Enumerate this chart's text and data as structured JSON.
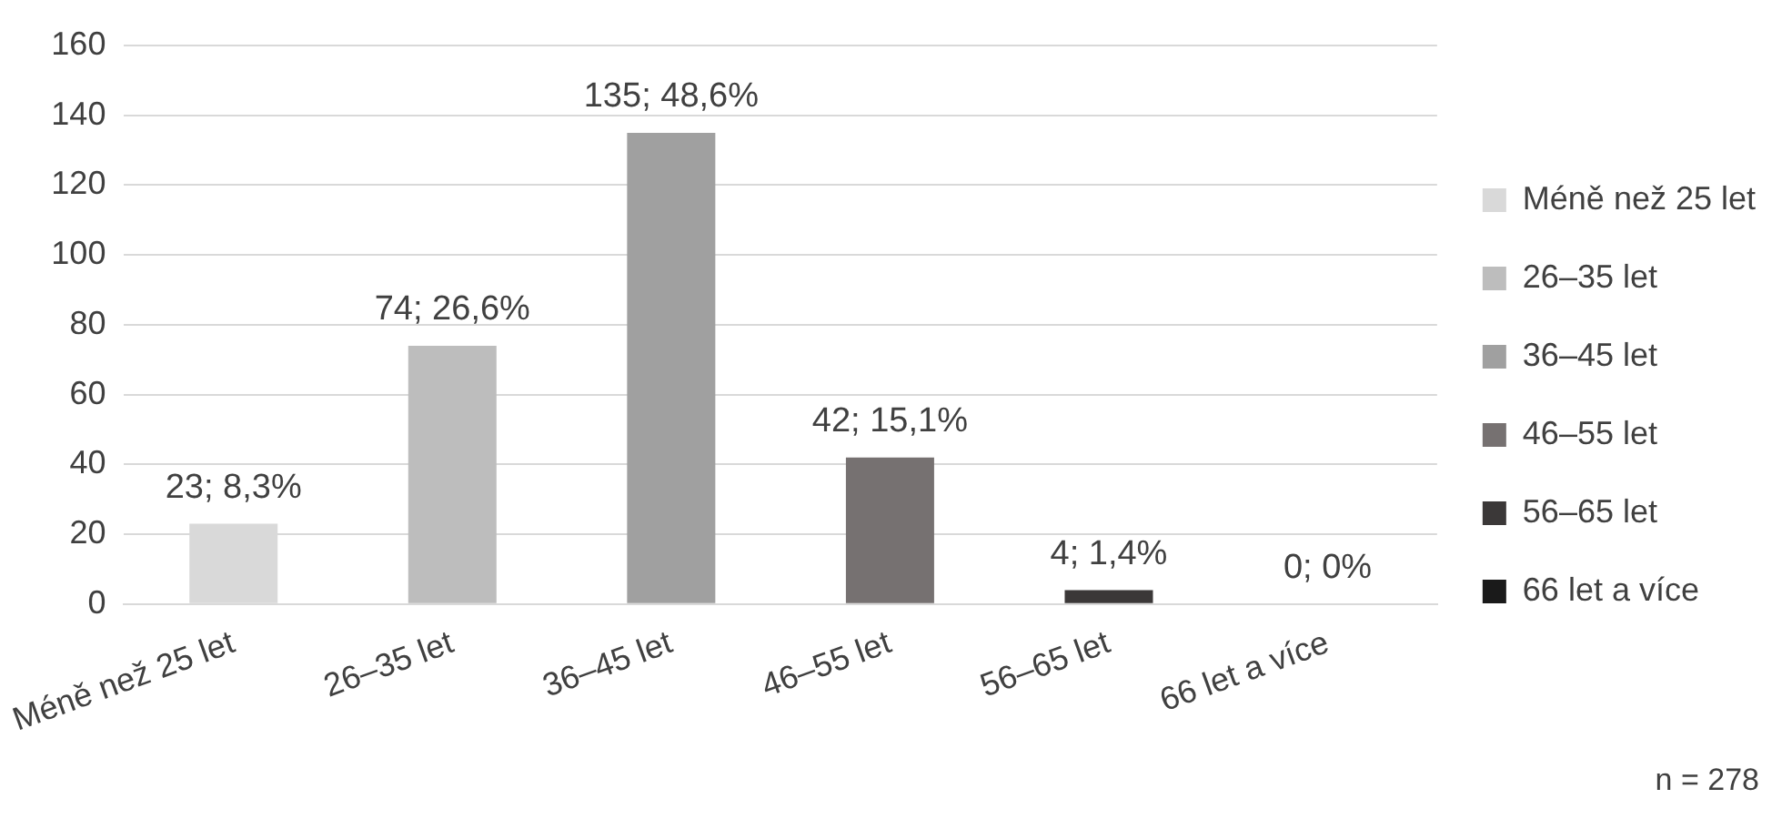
{
  "chart_data": {
    "type": "bar",
    "categories": [
      "Méně než 25 let",
      "26–35 let",
      "36–45 let",
      "46–55 let",
      "56–65 let",
      "66 let a více"
    ],
    "series": [
      {
        "name": "Méně než 25 let",
        "color": "#d9d9d9",
        "values": [
          23,
          null,
          null,
          null,
          null,
          null
        ],
        "value_labels": [
          "23; 8,3%",
          null,
          null,
          null,
          null,
          null
        ]
      },
      {
        "name": "26–35 let",
        "color": "#bdbdbd",
        "values": [
          null,
          74,
          null,
          null,
          null,
          null
        ],
        "value_labels": [
          null,
          "74; 26,6%",
          null,
          null,
          null,
          null
        ]
      },
      {
        "name": "36–45 let",
        "color": "#a0a0a0",
        "values": [
          null,
          null,
          135,
          null,
          null,
          null
        ],
        "value_labels": [
          null,
          null,
          "135; 48,6%",
          null,
          null,
          null
        ]
      },
      {
        "name": "46–55 let",
        "color": "#767171",
        "values": [
          null,
          null,
          null,
          42,
          null,
          null
        ],
        "value_labels": [
          null,
          null,
          null,
          "42; 15,1%",
          null,
          null
        ]
      },
      {
        "name": "56–65 let",
        "color": "#3b3838",
        "values": [
          null,
          null,
          null,
          null,
          4,
          null
        ],
        "value_labels": [
          null,
          null,
          null,
          null,
          "4; 1,4%",
          null
        ]
      },
      {
        "name": "66 let a více",
        "color": "#1a1a1a",
        "values": [
          null,
          null,
          null,
          null,
          null,
          0
        ],
        "value_labels": [
          null,
          null,
          null,
          null,
          null,
          "0; 0%"
        ]
      }
    ],
    "ylim": [
      0,
      160
    ],
    "yticks": [
      0,
      20,
      40,
      60,
      80,
      100,
      120,
      140,
      160
    ],
    "grid": "y",
    "legend": "right",
    "annotations": [
      "n = 278"
    ]
  }
}
